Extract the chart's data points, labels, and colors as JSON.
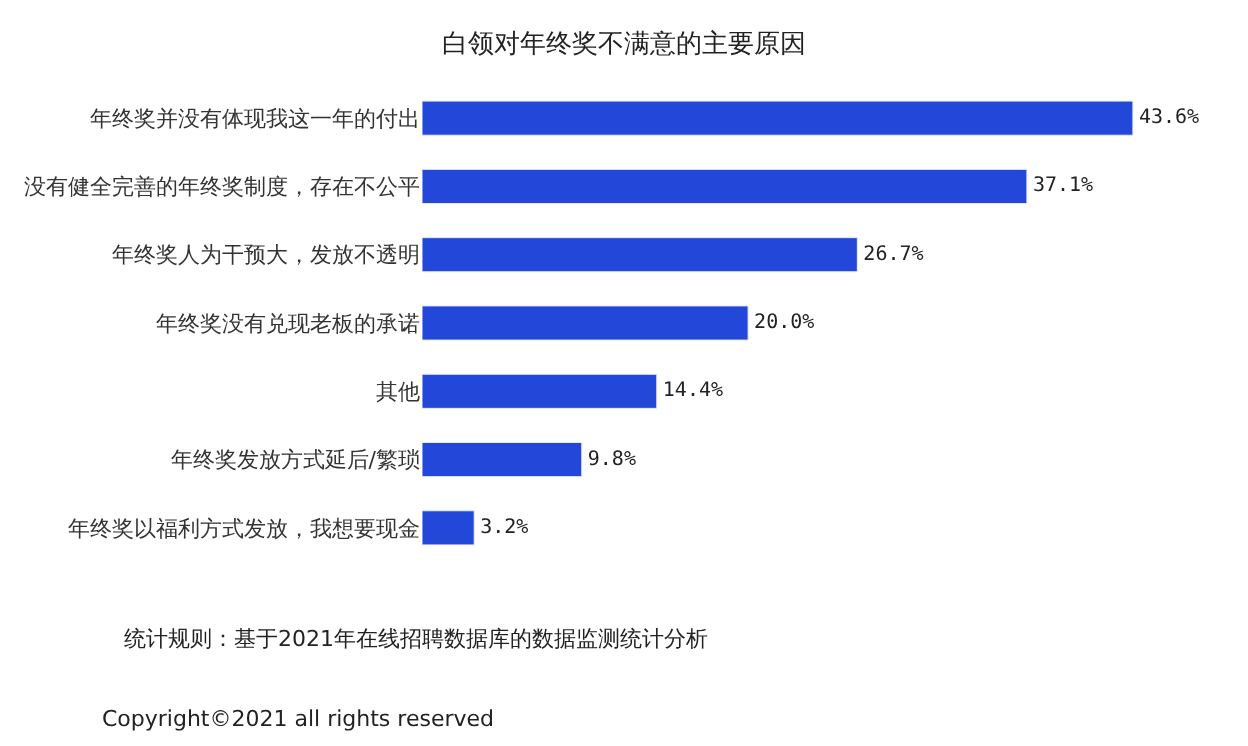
{
  "chart_data": {
    "type": "bar",
    "orientation": "horizontal",
    "title": "白领对年终奖不满意的主要原因",
    "categories": [
      "年终奖并没有体现我这一年的付出",
      "没有健全完善的年终奖制度，存在不公平",
      "年终奖人为干预大，发放不透明",
      "年终奖没有兑现老板的承诺",
      "其他",
      "年终奖发放方式延后/繁琐",
      "年终奖以福利方式发放，我想要现金"
    ],
    "values": [
      43.6,
      37.1,
      26.7,
      20.0,
      14.4,
      9.8,
      3.2
    ],
    "value_labels": [
      "43.6%",
      "37.1%",
      "26.7%",
      "20.0%",
      "14.4%",
      "9.8%",
      "3.2%"
    ],
    "color": "#2347d8",
    "annotations": [
      "统计规则：基于2021年在线招聘数据库的数据监测统计分析",
      "Copyright©2021 all rights reserved"
    ]
  }
}
